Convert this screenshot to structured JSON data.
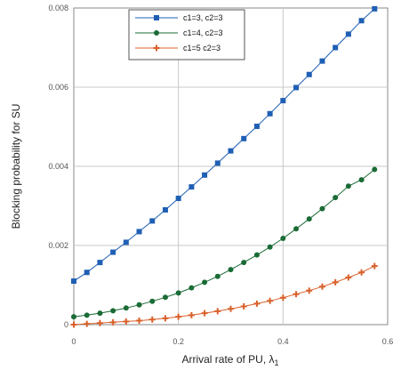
{
  "chart_data": {
    "type": "line",
    "title": "",
    "xlabel": "Arrival rate of PU, λ",
    "xlabel_sub": "1",
    "ylabel": "Blocking probability for SU",
    "xlim": [
      0,
      0.6
    ],
    "ylim": [
      0,
      0.008
    ],
    "xticks": [
      0,
      0.2,
      0.4,
      0.6
    ],
    "xtick_labels": [
      "0",
      "0.2",
      "0.4",
      "0.6"
    ],
    "yticks": [
      0,
      0.002,
      0.004,
      0.006,
      0.008
    ],
    "ytick_labels": [
      "0",
      "0.002",
      "0.004",
      "0.006",
      "0.008"
    ],
    "grid": true,
    "legend_position": "top-center",
    "x": [
      0,
      0.025,
      0.05,
      0.075,
      0.1,
      0.125,
      0.15,
      0.175,
      0.2,
      0.225,
      0.25,
      0.275,
      0.3,
      0.325,
      0.35,
      0.375,
      0.4,
      0.425,
      0.45,
      0.475,
      0.5,
      0.525,
      0.55,
      0.575
    ],
    "series": [
      {
        "name": "c1=3, c2=3",
        "color": "#1f5fb4",
        "marker": "square",
        "values": [
          0.0011,
          0.00132,
          0.00157,
          0.00183,
          0.00208,
          0.00235,
          0.00262,
          0.0029,
          0.00319,
          0.00348,
          0.00378,
          0.00408,
          0.00439,
          0.0047,
          0.00501,
          0.00533,
          0.00566,
          0.00599,
          0.00632,
          0.00666,
          0.007,
          0.00734,
          0.00768,
          0.00798
        ]
      },
      {
        "name": "c1=4, c2=3",
        "color": "#1a6b35",
        "marker": "circle",
        "values": [
          0.0002,
          0.00024,
          0.00029,
          0.00035,
          0.00042,
          0.0005,
          0.00059,
          0.00069,
          0.0008,
          0.00093,
          0.00107,
          0.00122,
          0.00139,
          0.00157,
          0.00176,
          0.00196,
          0.00218,
          0.00242,
          0.00267,
          0.00293,
          0.00321,
          0.0035,
          0.00366,
          0.00392
        ]
      },
      {
        "name": "c1=5 c2=3",
        "color": "#d9602a",
        "marker": "plus",
        "values": [
          0.0,
          2e-05,
          4e-05,
          6e-05,
          8e-05,
          0.0001,
          0.00013,
          0.00016,
          0.0002,
          0.00024,
          0.00029,
          0.00034,
          0.0004,
          0.00046,
          0.00053,
          0.0006,
          0.00068,
          0.00077,
          0.00086,
          0.00096,
          0.00107,
          0.00119,
          0.00132,
          0.00148
        ]
      }
    ]
  }
}
